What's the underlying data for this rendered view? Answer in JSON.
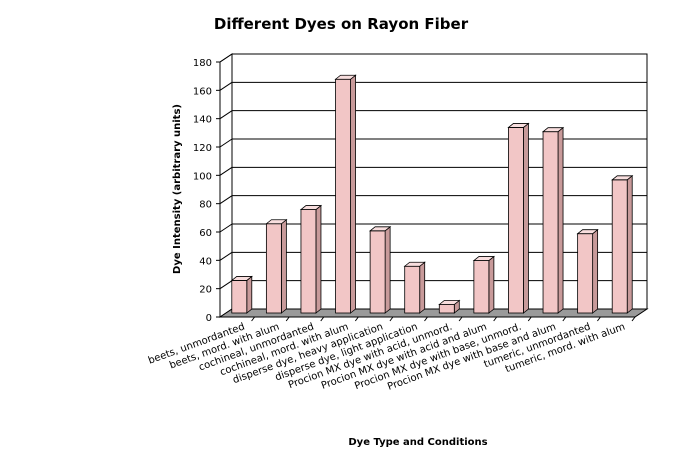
{
  "chart_data": {
    "type": "bar",
    "title": "Different Dyes on Rayon Fiber",
    "xlabel": "Dye Type and Conditions",
    "ylabel": "Dye Intensity (arbitrary units)",
    "ylim": [
      0,
      180
    ],
    "yticks": [
      0,
      20,
      40,
      60,
      80,
      100,
      120,
      140,
      160,
      180
    ],
    "grid": true,
    "legend": "none",
    "categories": [
      "beets, unmordanted",
      "beets, mord. with alum",
      "cochineal, unmordanted",
      "cochineal, mord. with alum",
      "disperse dye, heavy application",
      "disperse dye, light application",
      "Procion MX dye with acid, unmord.",
      "Procion MX dye with acid and alum",
      "Procion MX dye with base, unmord.",
      "Procion MX dye with base and alum",
      "tumeric, unmordanted",
      "tumeric, mord. with alum"
    ],
    "values": [
      23,
      63,
      73,
      165,
      58,
      33,
      6,
      37,
      131,
      128,
      56,
      94
    ],
    "colors": {
      "bar_front": "#f2c6c6",
      "bar_side": "#c89a9a",
      "bar_top": "#f8dede",
      "floor": "#9a9a9a",
      "wall": "#ffffff",
      "grid": "#000000"
    }
  }
}
